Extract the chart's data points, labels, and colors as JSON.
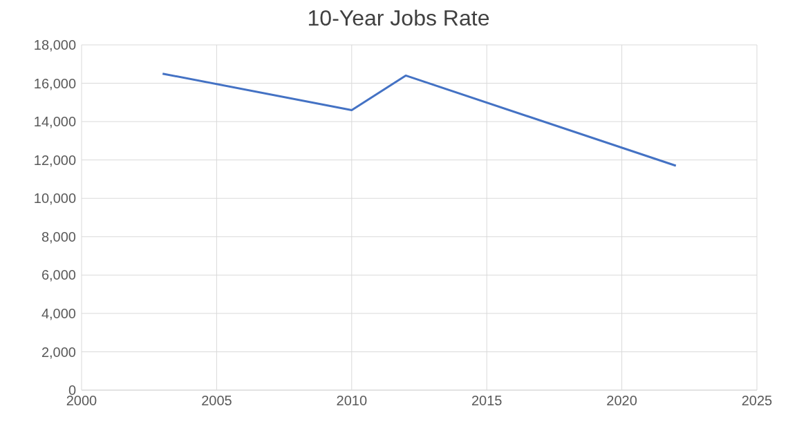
{
  "chart_data": {
    "type": "line",
    "title": "10-Year Jobs Rate",
    "x": [
      2003,
      2010,
      2012,
      2022
    ],
    "series": [
      {
        "color": "#4472c4",
        "values": [
          16500,
          14600,
          16400,
          11700
        ]
      }
    ],
    "xlim": [
      2000,
      2025
    ],
    "xticks": [
      2000,
      2005,
      2010,
      2015,
      2020,
      2025
    ],
    "ylim": [
      0,
      18000
    ],
    "yticks": [
      0,
      {
        "value": 2000,
        "label": "2,000"
      },
      {
        "value": 4000,
        "label": "4,000"
      },
      {
        "value": 6000,
        "label": "6,000"
      },
      {
        "value": 8000,
        "label": "8,000"
      },
      {
        "value": 10000,
        "label": "10,000"
      },
      {
        "value": 12000,
        "label": "12,000"
      },
      {
        "value": 14000,
        "label": "14,000"
      },
      {
        "value": 16000,
        "label": "16,000"
      },
      {
        "value": 18000,
        "label": "18,000"
      }
    ],
    "grid": true,
    "marker": "none",
    "line_style": "solid"
  }
}
